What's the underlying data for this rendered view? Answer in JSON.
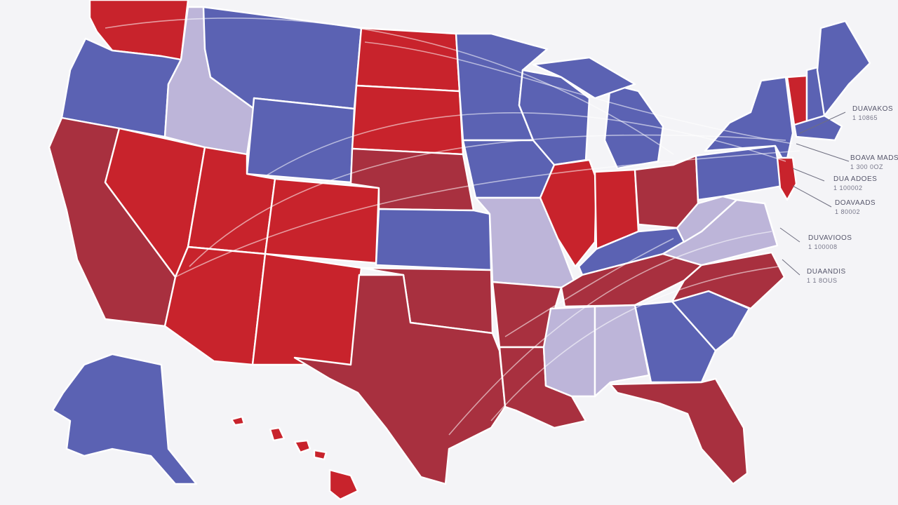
{
  "colors": {
    "red": "#c8232c",
    "dark_red": "#a8303f",
    "blue": "#5b62b3",
    "lavender": "#bdb5d9",
    "border": "#ffffff",
    "background": "#f4f4f7"
  },
  "states": [
    {
      "name": "Washington",
      "party": "red"
    },
    {
      "name": "Oregon",
      "party": "blue"
    },
    {
      "name": "California",
      "party": "dark_red"
    },
    {
      "name": "Nevada",
      "party": "red"
    },
    {
      "name": "Idaho",
      "party": "lavender"
    },
    {
      "name": "Montana",
      "party": "blue"
    },
    {
      "name": "Wyoming",
      "party": "blue"
    },
    {
      "name": "Utah",
      "party": "red"
    },
    {
      "name": "Arizona",
      "party": "red"
    },
    {
      "name": "Colorado",
      "party": "red"
    },
    {
      "name": "New Mexico",
      "party": "red"
    },
    {
      "name": "North Dakota",
      "party": "red"
    },
    {
      "name": "South Dakota",
      "party": "red"
    },
    {
      "name": "Nebraska",
      "party": "dark_red"
    },
    {
      "name": "Kansas",
      "party": "blue"
    },
    {
      "name": "Oklahoma",
      "party": "dark_red"
    },
    {
      "name": "Texas",
      "party": "dark_red"
    },
    {
      "name": "Minnesota",
      "party": "blue"
    },
    {
      "name": "Iowa",
      "party": "blue"
    },
    {
      "name": "Missouri",
      "party": "lavender"
    },
    {
      "name": "Arkansas",
      "party": "dark_red"
    },
    {
      "name": "Louisiana",
      "party": "dark_red"
    },
    {
      "name": "Wisconsin",
      "party": "blue"
    },
    {
      "name": "Illinois",
      "party": "red"
    },
    {
      "name": "Michigan",
      "party": "blue"
    },
    {
      "name": "Indiana",
      "party": "red"
    },
    {
      "name": "Ohio",
      "party": "dark_red"
    },
    {
      "name": "Kentucky",
      "party": "blue"
    },
    {
      "name": "Tennessee",
      "party": "dark_red"
    },
    {
      "name": "Mississippi",
      "party": "lavender"
    },
    {
      "name": "Alabama",
      "party": "lavender"
    },
    {
      "name": "Georgia",
      "party": "blue"
    },
    {
      "name": "Florida",
      "party": "dark_red"
    },
    {
      "name": "South Carolina",
      "party": "blue"
    },
    {
      "name": "North Carolina",
      "party": "dark_red"
    },
    {
      "name": "Virginia",
      "party": "lavender"
    },
    {
      "name": "West Virginia",
      "party": "lavender"
    },
    {
      "name": "Pennsylvania",
      "party": "blue"
    },
    {
      "name": "New York",
      "party": "blue"
    },
    {
      "name": "New Jersey",
      "party": "red"
    },
    {
      "name": "Vermont",
      "party": "red"
    },
    {
      "name": "New Hampshire",
      "party": "blue"
    },
    {
      "name": "Maine",
      "party": "blue"
    },
    {
      "name": "Massachusetts",
      "party": "blue"
    },
    {
      "name": "Alaska",
      "party": "blue"
    },
    {
      "name": "Hawaii",
      "party": "red"
    }
  ],
  "labels": [
    {
      "head": "DUAVAKOS",
      "sub": "1 10865"
    },
    {
      "head": "BOAVA MADS",
      "sub": "1 300 0OZ"
    },
    {
      "head": "DUA ADOES",
      "sub": "1 100002"
    },
    {
      "head": "DOAVAADS",
      "sub": "1 80002"
    },
    {
      "head": "DUVAVIOOS",
      "sub": "1 100008"
    },
    {
      "head": "DUAANDIS",
      "sub": "1 1 8OUS"
    }
  ]
}
